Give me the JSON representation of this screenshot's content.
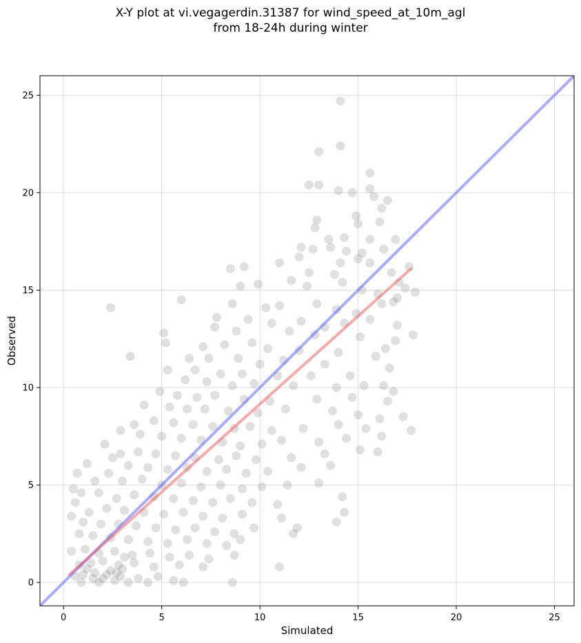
{
  "chart_data": {
    "type": "scatter",
    "title_line1": "X-Y plot at vi.vegagerdin.31387 for wind_speed_at_10m_agl",
    "title_line2": "from 18-24h during winter",
    "xlabel": "Simulated",
    "ylabel": "Observed",
    "xlim": [
      -1.2,
      26
    ],
    "ylim": [
      -1.2,
      26
    ],
    "xticks": [
      0,
      5,
      10,
      15,
      20,
      25
    ],
    "yticks": [
      0,
      5,
      10,
      15,
      20,
      25
    ],
    "grid": true,
    "colors": {
      "points": "#555555",
      "identity_line": "#5555ff",
      "fit_line": "#ee5555"
    },
    "identity_line": {
      "x": [
        -1.2,
        26
      ],
      "y": [
        -1.2,
        26
      ]
    },
    "fit_line": {
      "x": [
        0.3,
        17.7
      ],
      "y": [
        0.4,
        16.1
      ]
    },
    "points": [
      [
        14.1,
        24.7
      ],
      [
        14.1,
        22.4
      ],
      [
        13.0,
        22.1
      ],
      [
        12.5,
        20.4
      ],
      [
        13.0,
        20.4
      ],
      [
        15.6,
        21.0
      ],
      [
        14.0,
        20.1
      ],
      [
        14.7,
        20.0
      ],
      [
        15.6,
        20.2
      ],
      [
        15.8,
        19.8
      ],
      [
        16.2,
        19.2
      ],
      [
        16.5,
        19.6
      ],
      [
        12.9,
        18.6
      ],
      [
        14.9,
        18.8
      ],
      [
        15.0,
        18.4
      ],
      [
        16.1,
        18.5
      ],
      [
        12.8,
        18.2
      ],
      [
        13.5,
        17.6
      ],
      [
        14.3,
        17.7
      ],
      [
        15.6,
        17.6
      ],
      [
        16.9,
        17.6
      ],
      [
        12.7,
        17.1
      ],
      [
        13.6,
        17.2
      ],
      [
        14.4,
        17.0
      ],
      [
        15.2,
        16.9
      ],
      [
        16.3,
        17.1
      ],
      [
        12.1,
        17.2
      ],
      [
        11.0,
        16.4
      ],
      [
        8.5,
        16.1
      ],
      [
        9.2,
        16.2
      ],
      [
        12.0,
        16.7
      ],
      [
        14.1,
        16.4
      ],
      [
        15.0,
        16.6
      ],
      [
        15.6,
        16.4
      ],
      [
        12.5,
        15.9
      ],
      [
        13.8,
        15.8
      ],
      [
        16.7,
        15.9
      ],
      [
        17.1,
        15.4
      ],
      [
        17.6,
        16.2
      ],
      [
        17.9,
        14.9
      ],
      [
        9.0,
        15.2
      ],
      [
        9.9,
        15.3
      ],
      [
        11.6,
        15.5
      ],
      [
        12.4,
        15.2
      ],
      [
        14.2,
        15.4
      ],
      [
        15.2,
        15.0
      ],
      [
        16.0,
        14.8
      ],
      [
        17.0,
        14.6
      ],
      [
        17.4,
        15.1
      ],
      [
        2.4,
        14.1
      ],
      [
        6.0,
        14.5
      ],
      [
        8.6,
        14.3
      ],
      [
        10.3,
        14.1
      ],
      [
        11.0,
        14.2
      ],
      [
        12.9,
        14.3
      ],
      [
        13.9,
        14.0
      ],
      [
        14.9,
        13.8
      ],
      [
        16.2,
        14.3
      ],
      [
        16.8,
        14.4
      ],
      [
        7.8,
        13.6
      ],
      [
        9.4,
        13.5
      ],
      [
        10.6,
        13.3
      ],
      [
        12.1,
        13.4
      ],
      [
        13.3,
        13.1
      ],
      [
        14.3,
        13.3
      ],
      [
        15.6,
        13.5
      ],
      [
        17.0,
        13.2
      ],
      [
        7.7,
        13.1
      ],
      [
        8.8,
        12.9
      ],
      [
        11.5,
        12.9
      ],
      [
        12.8,
        12.7
      ],
      [
        15.1,
        12.6
      ],
      [
        16.9,
        12.4
      ],
      [
        5.1,
        12.8
      ],
      [
        5.2,
        12.3
      ],
      [
        7.1,
        12.1
      ],
      [
        8.2,
        12.2
      ],
      [
        9.6,
        12.3
      ],
      [
        10.4,
        12.0
      ],
      [
        12.0,
        11.9
      ],
      [
        14.0,
        11.8
      ],
      [
        16.4,
        12.0
      ],
      [
        17.8,
        12.7
      ],
      [
        3.4,
        11.6
      ],
      [
        6.4,
        11.5
      ],
      [
        7.4,
        11.5
      ],
      [
        8.9,
        11.5
      ],
      [
        10.0,
        11.2
      ],
      [
        11.2,
        11.4
      ],
      [
        13.3,
        11.2
      ],
      [
        15.9,
        11.6
      ],
      [
        16.6,
        11.0
      ],
      [
        6.7,
        10.9
      ],
      [
        8.0,
        10.7
      ],
      [
        9.1,
        10.7
      ],
      [
        10.9,
        10.6
      ],
      [
        12.6,
        10.6
      ],
      [
        14.6,
        10.6
      ],
      [
        5.3,
        10.9
      ],
      [
        6.2,
        10.4
      ],
      [
        7.3,
        10.3
      ],
      [
        8.6,
        10.1
      ],
      [
        9.7,
        10.2
      ],
      [
        11.7,
        10.1
      ],
      [
        13.9,
        10.0
      ],
      [
        15.3,
        10.1
      ],
      [
        16.3,
        10.1
      ],
      [
        16.8,
        9.8
      ],
      [
        4.9,
        9.8
      ],
      [
        5.8,
        9.6
      ],
      [
        6.8,
        9.5
      ],
      [
        7.7,
        9.6
      ],
      [
        9.2,
        9.4
      ],
      [
        10.5,
        9.3
      ],
      [
        12.9,
        9.4
      ],
      [
        14.7,
        9.5
      ],
      [
        16.5,
        9.3
      ],
      [
        4.1,
        9.1
      ],
      [
        5.4,
        9.0
      ],
      [
        6.3,
        8.9
      ],
      [
        7.2,
        8.9
      ],
      [
        8.4,
        8.8
      ],
      [
        9.9,
        8.7
      ],
      [
        11.3,
        8.9
      ],
      [
        13.7,
        8.8
      ],
      [
        15.0,
        8.6
      ],
      [
        16.1,
        8.4
      ],
      [
        17.3,
        8.5
      ],
      [
        3.6,
        8.1
      ],
      [
        4.6,
        8.3
      ],
      [
        5.6,
        8.2
      ],
      [
        6.6,
        8.1
      ],
      [
        7.6,
        8.0
      ],
      [
        8.7,
        7.9
      ],
      [
        9.5,
        8.0
      ],
      [
        10.6,
        7.8
      ],
      [
        12.2,
        7.9
      ],
      [
        14.0,
        8.1
      ],
      [
        15.4,
        7.9
      ],
      [
        17.7,
        7.8
      ],
      [
        2.1,
        7.1
      ],
      [
        2.9,
        7.8
      ],
      [
        3.9,
        7.6
      ],
      [
        5.0,
        7.5
      ],
      [
        6.0,
        7.4
      ],
      [
        7.0,
        7.3
      ],
      [
        8.1,
        7.2
      ],
      [
        9.0,
        7.0
      ],
      [
        10.1,
        7.1
      ],
      [
        11.1,
        7.3
      ],
      [
        13.0,
        7.2
      ],
      [
        14.4,
        7.4
      ],
      [
        16.2,
        7.5
      ],
      [
        2.9,
        6.6
      ],
      [
        3.8,
        6.7
      ],
      [
        4.7,
        6.6
      ],
      [
        5.7,
        6.5
      ],
      [
        6.7,
        6.4
      ],
      [
        7.9,
        6.3
      ],
      [
        8.8,
        6.5
      ],
      [
        9.8,
        6.3
      ],
      [
        11.6,
        6.4
      ],
      [
        13.3,
        6.6
      ],
      [
        15.1,
        6.8
      ],
      [
        16.0,
        6.7
      ],
      [
        1.2,
        6.1
      ],
      [
        2.5,
        6.4
      ],
      [
        3.3,
        6.0
      ],
      [
        4.3,
        5.9
      ],
      [
        5.3,
        5.8
      ],
      [
        6.3,
        5.9
      ],
      [
        7.3,
        5.7
      ],
      [
        8.3,
        5.8
      ],
      [
        9.3,
        5.6
      ],
      [
        10.4,
        5.7
      ],
      [
        12.1,
        5.9
      ],
      [
        13.6,
        6.0
      ],
      [
        0.7,
        5.6
      ],
      [
        1.6,
        5.2
      ],
      [
        2.3,
        5.6
      ],
      [
        3.0,
        5.2
      ],
      [
        4.0,
        5.3
      ],
      [
        5.0,
        5.0
      ],
      [
        6.0,
        5.1
      ],
      [
        7.0,
        4.9
      ],
      [
        8.0,
        5.0
      ],
      [
        9.1,
        4.8
      ],
      [
        10.1,
        4.9
      ],
      [
        11.4,
        5.0
      ],
      [
        13.0,
        5.1
      ],
      [
        0.5,
        4.8
      ],
      [
        0.9,
        4.6
      ],
      [
        1.8,
        4.6
      ],
      [
        2.7,
        4.3
      ],
      [
        3.6,
        4.5
      ],
      [
        4.6,
        4.4
      ],
      [
        5.6,
        4.3
      ],
      [
        6.6,
        4.2
      ],
      [
        7.6,
        4.1
      ],
      [
        8.5,
        4.3
      ],
      [
        9.6,
        4.1
      ],
      [
        10.9,
        4.0
      ],
      [
        14.2,
        4.4
      ],
      [
        0.6,
        4.1
      ],
      [
        1.3,
        3.6
      ],
      [
        2.2,
        3.8
      ],
      [
        3.1,
        3.7
      ],
      [
        4.1,
        3.6
      ],
      [
        5.1,
        3.5
      ],
      [
        6.1,
        3.6
      ],
      [
        7.1,
        3.4
      ],
      [
        8.1,
        3.3
      ],
      [
        9.1,
        3.5
      ],
      [
        11.1,
        3.3
      ],
      [
        14.3,
        3.6
      ],
      [
        0.4,
        3.4
      ],
      [
        1.0,
        3.1
      ],
      [
        1.9,
        3.0
      ],
      [
        2.8,
        3.0
      ],
      [
        3.7,
        2.9
      ],
      [
        4.7,
        2.8
      ],
      [
        5.7,
        2.7
      ],
      [
        6.7,
        2.8
      ],
      [
        7.7,
        2.6
      ],
      [
        8.7,
        2.5
      ],
      [
        9.7,
        2.8
      ],
      [
        11.9,
        2.8
      ],
      [
        13.9,
        3.1
      ],
      [
        0.8,
        2.5
      ],
      [
        1.5,
        2.4
      ],
      [
        2.4,
        2.3
      ],
      [
        3.3,
        2.2
      ],
      [
        4.3,
        2.1
      ],
      [
        5.3,
        2.0
      ],
      [
        6.3,
        2.2
      ],
      [
        7.3,
        2.0
      ],
      [
        8.3,
        1.9
      ],
      [
        9.0,
        2.2
      ],
      [
        11.7,
        2.5
      ],
      [
        0.4,
        1.6
      ],
      [
        1.1,
        1.7
      ],
      [
        1.8,
        1.5
      ],
      [
        2.6,
        1.6
      ],
      [
        3.5,
        1.4
      ],
      [
        4.4,
        1.5
      ],
      [
        5.4,
        1.3
      ],
      [
        6.4,
        1.4
      ],
      [
        7.4,
        1.2
      ],
      [
        8.7,
        1.4
      ],
      [
        0.8,
        0.9
      ],
      [
        1.4,
        1.0
      ],
      [
        2.0,
        1.1
      ],
      [
        2.8,
        0.9
      ],
      [
        3.6,
        1.0
      ],
      [
        4.6,
        0.8
      ],
      [
        5.9,
        0.9
      ],
      [
        7.1,
        0.8
      ],
      [
        11.0,
        0.8
      ],
      [
        0.6,
        0.3
      ],
      [
        1.0,
        0.4
      ],
      [
        1.6,
        0.5
      ],
      [
        2.2,
        0.4
      ],
      [
        2.9,
        0.3
      ],
      [
        3.8,
        0.2
      ],
      [
        4.8,
        0.3
      ],
      [
        5.6,
        0.1
      ],
      [
        0.9,
        0.0
      ],
      [
        1.8,
        0.0
      ],
      [
        2.6,
        0.1
      ],
      [
        3.3,
        0.0
      ],
      [
        4.3,
        0.0
      ],
      [
        6.1,
        0.0
      ],
      [
        8.6,
        0.0
      ],
      [
        1.2,
        0.7
      ],
      [
        2.4,
        0.6
      ],
      [
        3.1,
        1.3
      ],
      [
        2.0,
        0.2
      ],
      [
        2.7,
        0.5
      ],
      [
        1.5,
        0.2
      ],
      [
        3.0,
        0.7
      ]
    ]
  }
}
